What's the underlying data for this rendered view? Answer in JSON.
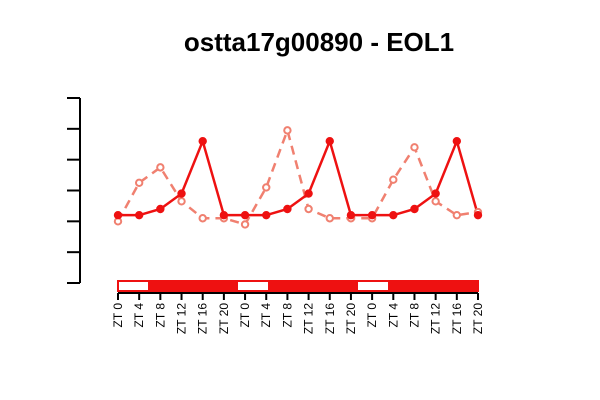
{
  "chart_data": {
    "type": "line",
    "title": "ostta17g00890 - EOL1",
    "xlabel": "",
    "ylabel": "",
    "y_axis_tick_labels_shown": false,
    "ylim": [
      0,
      1.2
    ],
    "categories": [
      "ZT 0",
      "ZT 4",
      "ZT 8",
      "ZT 12",
      "ZT 16",
      "ZT 20",
      "ZT 0",
      "ZT 4",
      "ZT 8",
      "ZT 12",
      "ZT 16",
      "ZT 20",
      "ZT 0",
      "ZT 4",
      "ZT 8",
      "ZT 12",
      "ZT 16",
      "ZT 20"
    ],
    "series": [
      {
        "style": "solid",
        "color": "#ee1111",
        "marker": "filled-circle",
        "values": [
          0.44,
          0.44,
          0.48,
          0.58,
          0.92,
          0.44,
          0.44,
          0.44,
          0.48,
          0.58,
          0.92,
          0.44,
          0.44,
          0.44,
          0.48,
          0.58,
          0.92,
          0.44
        ]
      },
      {
        "style": "dashed",
        "color": "#f08070",
        "marker": "open-circle",
        "values": [
          0.4,
          0.65,
          0.75,
          0.53,
          0.42,
          0.42,
          0.38,
          0.62,
          0.99,
          0.48,
          0.42,
          0.42,
          0.42,
          0.67,
          0.88,
          0.53,
          0.44,
          0.46
        ]
      }
    ],
    "light_dark_bar": {
      "colors": {
        "light": "#ffffff",
        "dark": "#ee1111",
        "border": "#ee1111"
      },
      "segments": [
        "light",
        "dark",
        "dark",
        "dark",
        "light",
        "dark",
        "dark",
        "dark",
        "light",
        "dark",
        "dark",
        "dark"
      ]
    },
    "grid": false,
    "legend": "none"
  }
}
